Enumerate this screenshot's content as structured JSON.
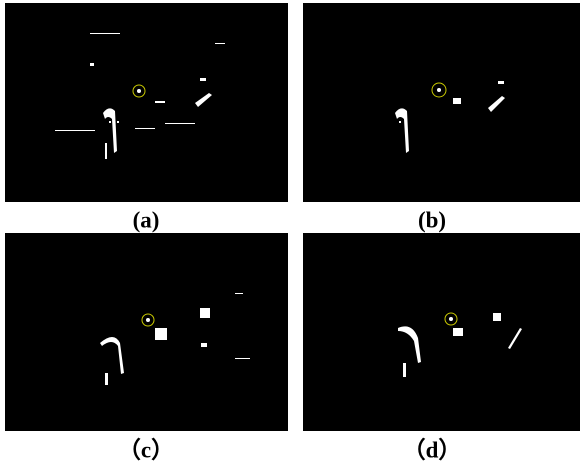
{
  "panels": [
    {
      "label": "(a)"
    },
    {
      "label": "(b)"
    },
    {
      "label": "（c）"
    },
    {
      "label": "（d）"
    }
  ]
}
